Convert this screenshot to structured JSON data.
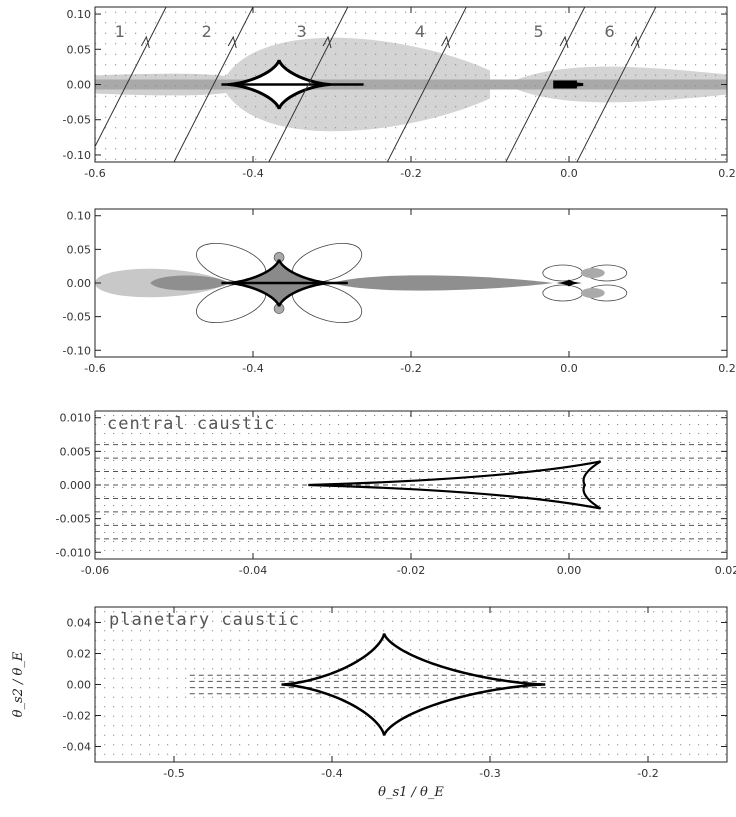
{
  "chart_data": [
    {
      "type": "scatter",
      "panel": "top",
      "xlim": [
        -0.6,
        0.2
      ],
      "ylim": [
        -0.11,
        0.11
      ],
      "xticks": [
        "-0.6",
        "-0.4",
        "-0.2",
        "0.0",
        "0.2"
      ],
      "yticks": [
        "0.10",
        "0.05",
        "0.00",
        "-0.05",
        "-0.10"
      ],
      "annotation": "",
      "trajectory_labels": [
        "1",
        "2",
        "3",
        "4",
        "5",
        "6"
      ],
      "trajectory_x0": [
        -0.56,
        -0.45,
        -0.33,
        -0.18,
        -0.03,
        0.06
      ],
      "grid": "dotted",
      "caustics": [
        {
          "name": "planetary",
          "center": [
            -0.367,
            0.0
          ],
          "half_width": 0.065,
          "half_height": 0.035
        },
        {
          "name": "central",
          "center": [
            0.0,
            0.0
          ],
          "half_width": 0.018,
          "half_height": 0.004
        }
      ]
    },
    {
      "type": "area",
      "panel": "second",
      "xlim": [
        -0.6,
        0.2
      ],
      "ylim": [
        -0.11,
        0.11
      ],
      "xticks": [
        "-0.6",
        "-0.4",
        "-0.2",
        "0.0",
        "0.2"
      ],
      "yticks": [
        "0.10",
        "0.05",
        "0.00",
        "-0.05",
        "-0.10"
      ],
      "annotation": "",
      "caustics": [
        {
          "name": "planetary",
          "center": [
            -0.367,
            0.0
          ],
          "half_width": 0.065,
          "half_height": 0.035
        },
        {
          "name": "central",
          "center": [
            0.0,
            0.0
          ],
          "half_width": 0.018,
          "half_height": 0.004
        }
      ]
    },
    {
      "type": "line",
      "panel": "third",
      "xlim": [
        -0.06,
        0.02
      ],
      "ylim": [
        -0.011,
        0.011
      ],
      "xticks": [
        "-0.06",
        "-0.04",
        "-0.02",
        "0.00",
        "0.02"
      ],
      "yticks": [
        "0.010",
        "0.005",
        "0.000",
        "-0.005",
        "-0.010"
      ],
      "annotation": "central caustic",
      "caustic": {
        "tip_left": [
          -0.033,
          0.0
        ],
        "upper_cusp": [
          0.004,
          0.0035
        ],
        "lower_cusp": [
          0.004,
          -0.0035
        ],
        "right_tip": [
          0.002,
          0.0
        ]
      }
    },
    {
      "type": "line",
      "panel": "bottom",
      "xlim": [
        -0.55,
        -0.15
      ],
      "ylim": [
        -0.05,
        0.05
      ],
      "xticks": [
        "-0.5",
        "-0.4",
        "-0.3",
        "-0.2"
      ],
      "yticks": [
        "0.04",
        "0.02",
        "0.00",
        "-0.02",
        "-0.04"
      ],
      "annotation": "planetary caustic",
      "xlabel": "θ_s1 / θ_E",
      "ylabel": "θ_s2 / θ_E",
      "caustic": {
        "center": [
          -0.367,
          0.0
        ],
        "left": -0.432,
        "right": -0.265,
        "top": 0.033,
        "bottom": -0.033
      }
    }
  ]
}
